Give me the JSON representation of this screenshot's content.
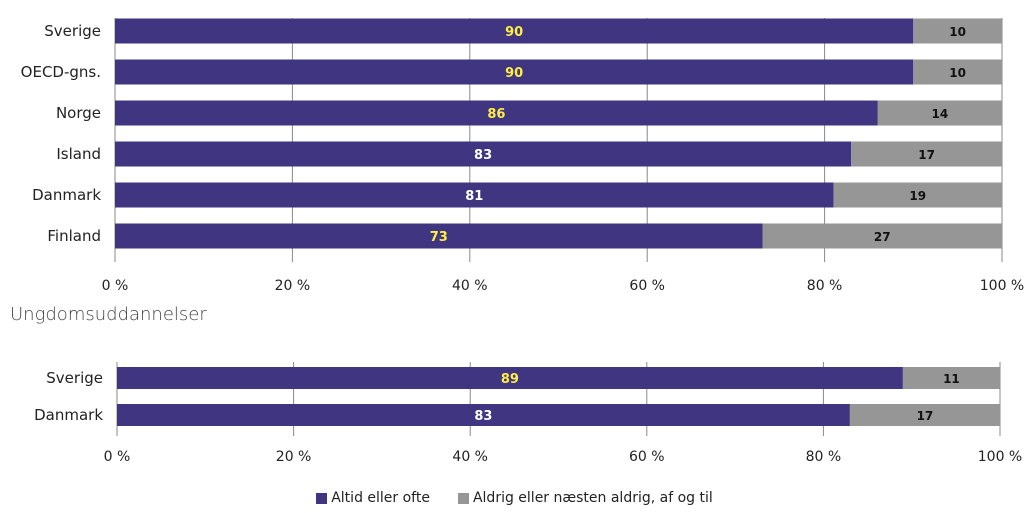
{
  "chart_data": [
    {
      "type": "bar",
      "orientation": "horizontal",
      "stacked": true,
      "title": "",
      "xlabel": "",
      "ylabel": "",
      "xlim": [
        0,
        100
      ],
      "x_ticks": [
        "0 %",
        "20 %",
        "40 %",
        "60 %",
        "80 %",
        "100 %"
      ],
      "categories": [
        "Sverige",
        "OECD-gns.",
        "Norge",
        "Island",
        "Danmark",
        "Finland"
      ],
      "series": [
        {
          "name": "Altid eller ofte",
          "values": [
            90,
            90,
            86,
            83,
            81,
            73
          ]
        },
        {
          "name": "Aldrig eller næsten aldrig, af og til",
          "values": [
            10,
            10,
            14,
            17,
            19,
            27
          ]
        }
      ],
      "label_colors": [
        "#ffee44",
        "#ffee44",
        "#ffee44",
        "#ffffff",
        "#ffffff",
        "#ffee44"
      ],
      "grid": true
    },
    {
      "type": "bar",
      "orientation": "horizontal",
      "stacked": true,
      "title": "Ungdomsuddannelser",
      "xlabel": "",
      "ylabel": "",
      "xlim": [
        0,
        100
      ],
      "x_ticks": [
        "0 %",
        "20 %",
        "40 %",
        "60 %",
        "80 %",
        "100 %"
      ],
      "categories": [
        "Sverige",
        "Danmark"
      ],
      "series": [
        {
          "name": "Altid eller ofte",
          "values": [
            89,
            83
          ]
        },
        {
          "name": "Aldrig eller næsten aldrig, af og til",
          "values": [
            11,
            17
          ]
        }
      ],
      "label_colors": [
        "#ffee44",
        "#ffffff"
      ],
      "grid": true
    }
  ],
  "legend": {
    "placement": "bottom-center",
    "items": [
      {
        "label": "Altid eller ofte",
        "color": "#3f3580"
      },
      {
        "label": "Aldrig eller næsten aldrig, af og til",
        "color": "#969696"
      }
    ]
  },
  "colors": {
    "series1": "#3f3580",
    "series2": "#969696",
    "grid": "#888888",
    "text": "#222222"
  }
}
